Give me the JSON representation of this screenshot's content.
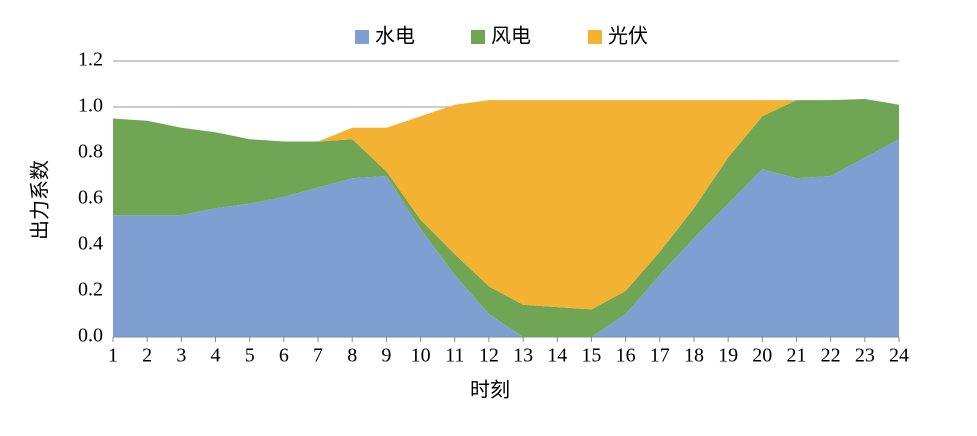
{
  "chart_data": {
    "type": "stacked-area",
    "x_label": "时刻",
    "y_label": "出力系数",
    "x": [
      1,
      2,
      3,
      4,
      5,
      6,
      7,
      8,
      9,
      10,
      11,
      12,
      13,
      14,
      15,
      16,
      17,
      18,
      19,
      20,
      21,
      22,
      23,
      24
    ],
    "xlim": [
      1,
      24
    ],
    "xticks": [
      1,
      2,
      3,
      4,
      5,
      6,
      7,
      8,
      9,
      10,
      11,
      12,
      13,
      14,
      15,
      16,
      17,
      18,
      19,
      20,
      21,
      22,
      23,
      24
    ],
    "ylim": [
      0,
      1.2
    ],
    "yticks": [
      {
        "value": 0,
        "label": "0.0"
      },
      {
        "value": 0.2,
        "label": "0.2"
      },
      {
        "value": 0.4,
        "label": "0.4"
      },
      {
        "value": 0.6,
        "label": "0.6"
      },
      {
        "value": 0.8,
        "label": "0.8"
      },
      {
        "value": 1,
        "label": "1.0"
      },
      {
        "value": 1.2,
        "label": "1.2"
      }
    ],
    "grid": true,
    "legend": "top",
    "series": [
      {
        "name": "水电",
        "color": "#7f9fd2",
        "values": [
          0.53,
          0.53,
          0.53,
          0.56,
          0.58,
          0.61,
          0.65,
          0.69,
          0.7,
          0.47,
          0.27,
          0.1,
          0,
          0,
          0,
          0.1,
          0.27,
          0.43,
          0.58,
          0.73,
          0.69,
          0.7,
          0.78,
          0.86
        ]
      },
      {
        "name": "风电",
        "color": "#70a553",
        "values": [
          0.42,
          0.41,
          0.38,
          0.33,
          0.28,
          0.24,
          0.2,
          0.17,
          0.02,
          0.04,
          0.09,
          0.12,
          0.14,
          0.13,
          0.12,
          0.1,
          0.1,
          0.13,
          0.2,
          0.23,
          0.34,
          0.33,
          0.255,
          0.15
        ]
      },
      {
        "name": "光伏",
        "color": "#f4b233",
        "values": [
          0,
          0,
          0,
          0,
          0,
          0,
          0,
          0.05,
          0.19,
          0.45,
          0.65,
          0.81,
          0.89,
          0.9,
          0.91,
          0.83,
          0.66,
          0.47,
          0.25,
          0.07,
          0,
          0,
          0,
          0
        ]
      }
    ]
  }
}
